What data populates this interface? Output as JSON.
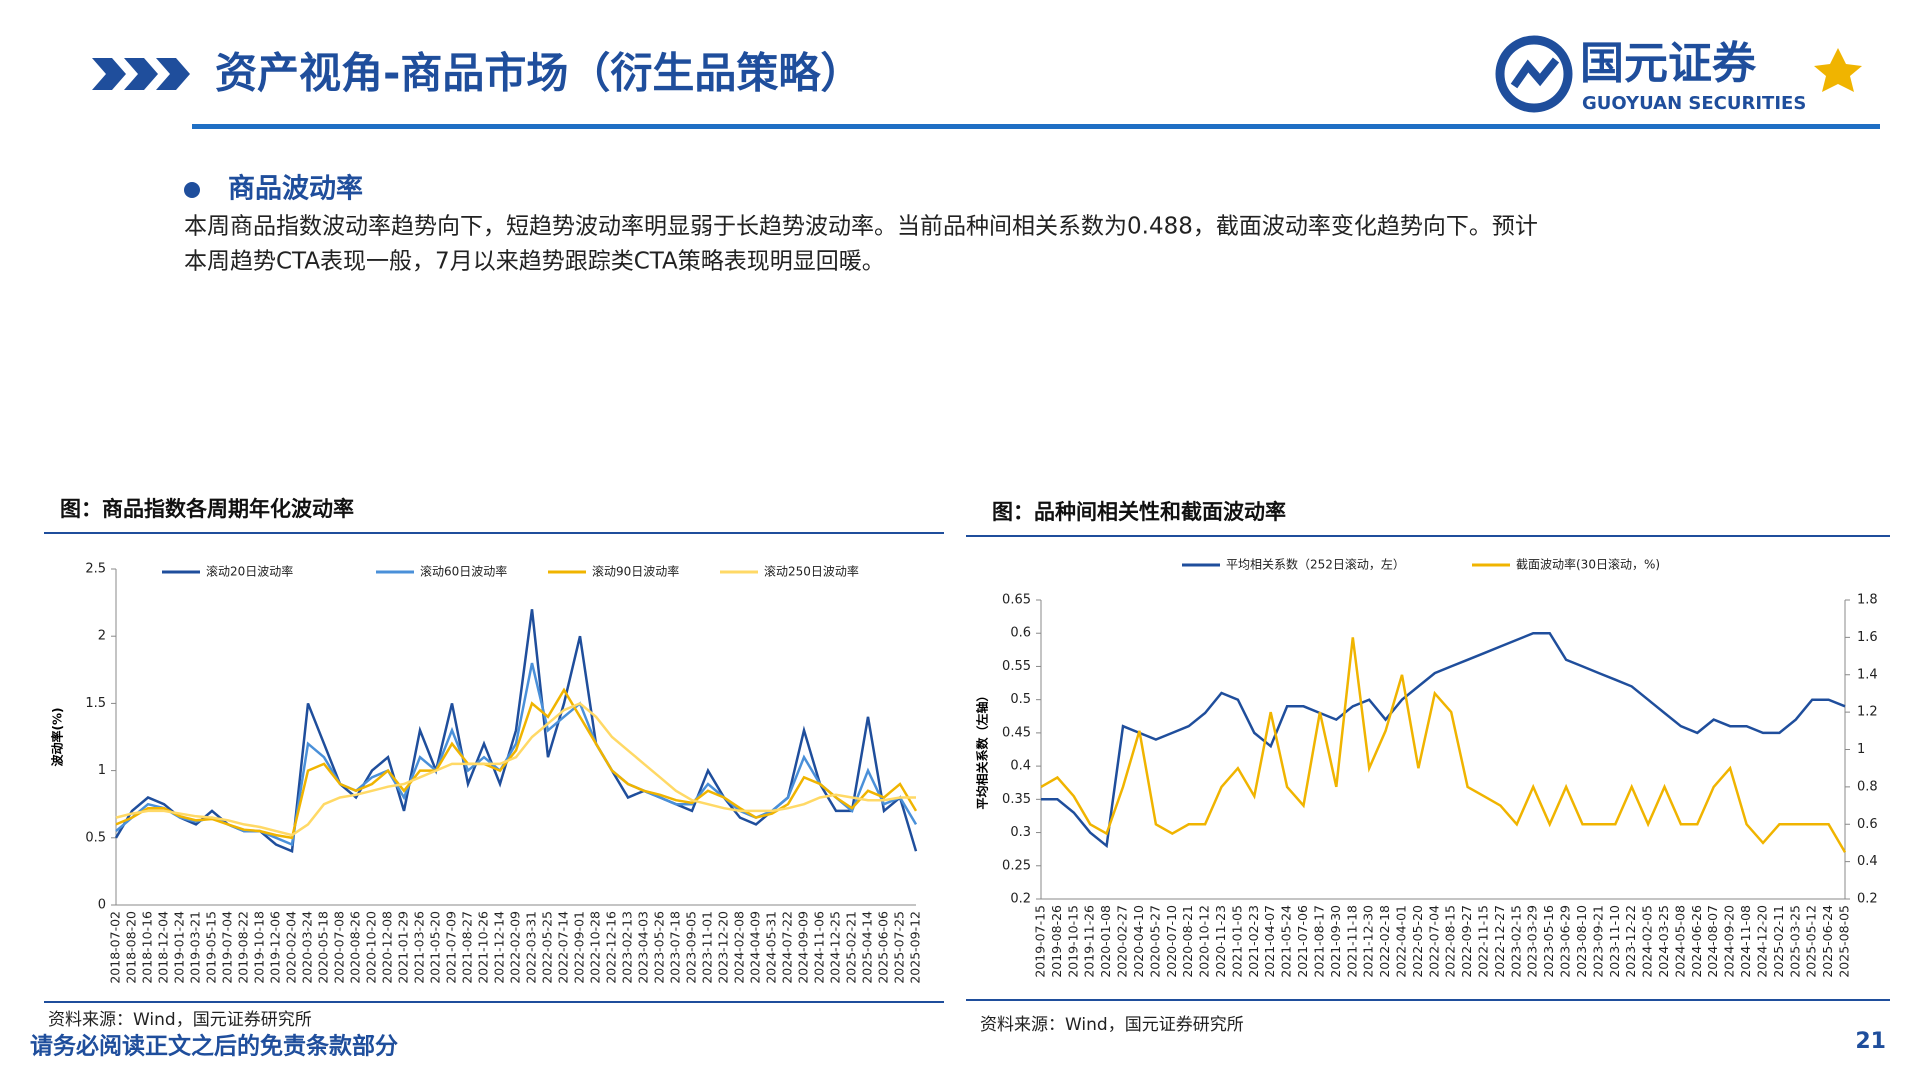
{
  "header": {
    "title": "资产视角-商品市场（衍生品策略）",
    "logo_name": "国元证券",
    "logo_english": "GUOYUAN SECURITIES"
  },
  "section": {
    "heading": "商品波动率",
    "lines": [
      "本周商品指数波动率趋势向下，短趋势波动率明显弱于长趋势波动率。当前品种间相关系数为0.488，截面波动率变化趋势向下。预计",
      "本周趋势CTA表现一般，7月以来趋势跟踪类CTA策略表现明显回暖。"
    ]
  },
  "footer": {
    "disclaimer": "请务必阅读正文之后的免责条款部分",
    "page": "21"
  },
  "chart_data": [
    {
      "type": "line",
      "title": "图：商品指数各周期年化波动率",
      "source": "资料来源：Wind，国元证券研究所",
      "y_label": "波动率(%)",
      "x": [
        "2018-07-02",
        "2018-08-20",
        "2018-10-16",
        "2018-12-04",
        "2019-01-24",
        "2019-03-21",
        "2019-05-15",
        "2019-07-04",
        "2019-08-22",
        "2019-10-18",
        "2019-12-06",
        "2020-02-04",
        "2020-03-24",
        "2020-05-18",
        "2020-07-08",
        "2020-08-26",
        "2020-10-20",
        "2020-12-08",
        "2021-01-29",
        "2021-03-26",
        "2021-05-20",
        "2021-07-09",
        "2021-08-27",
        "2021-10-26",
        "2021-12-14",
        "2022-02-09",
        "2022-03-31",
        "2022-05-25",
        "2022-07-14",
        "2022-09-01",
        "2022-10-28",
        "2022-12-16",
        "2023-02-13",
        "2023-04-03",
        "2023-05-26",
        "2023-07-18",
        "2023-09-05",
        "2023-11-01",
        "2023-12-20",
        "2024-02-08",
        "2024-04-09",
        "2024-05-31",
        "2024-07-22",
        "2024-09-09",
        "2024-11-06",
        "2024-12-25",
        "2025-02-21",
        "2025-04-14",
        "2025-06-06",
        "2025-07-25",
        "2025-09-12"
      ],
      "ylim": [
        0,
        2.5
      ],
      "yticks": [
        0,
        0.5,
        1,
        1.5,
        2,
        2.5
      ],
      "series": [
        {
          "name": "滚动20日波动率",
          "color": "#1f4e9c",
          "values": [
            0.5,
            0.7,
            0.8,
            0.75,
            0.65,
            0.6,
            0.7,
            0.6,
            0.55,
            0.55,
            0.45,
            0.4,
            1.5,
            1.2,
            0.9,
            0.8,
            1.0,
            1.1,
            0.7,
            1.3,
            1.0,
            1.5,
            0.9,
            1.2,
            0.9,
            1.3,
            2.2,
            1.1,
            1.5,
            2.0,
            1.2,
            1.0,
            0.8,
            0.85,
            0.8,
            0.75,
            0.7,
            1.0,
            0.8,
            0.65,
            0.6,
            0.7,
            0.8,
            1.3,
            0.9,
            0.7,
            0.7,
            1.4,
            0.7,
            0.8,
            0.4
          ]
        },
        {
          "name": "滚动60日波动率",
          "color": "#4a90d9",
          "values": [
            0.55,
            0.65,
            0.75,
            0.72,
            0.65,
            0.62,
            0.65,
            0.6,
            0.55,
            0.55,
            0.5,
            0.45,
            1.2,
            1.1,
            0.9,
            0.85,
            0.95,
            1.0,
            0.8,
            1.1,
            1.0,
            1.3,
            1.0,
            1.1,
            1.0,
            1.2,
            1.8,
            1.3,
            1.4,
            1.5,
            1.2,
            1.0,
            0.9,
            0.85,
            0.8,
            0.75,
            0.75,
            0.9,
            0.8,
            0.7,
            0.65,
            0.7,
            0.8,
            1.1,
            0.9,
            0.8,
            0.7,
            1.0,
            0.75,
            0.8,
            0.6
          ]
        },
        {
          "name": "滚动90日波动率",
          "color": "#f0b400",
          "values": [
            0.6,
            0.65,
            0.72,
            0.72,
            0.66,
            0.63,
            0.64,
            0.6,
            0.56,
            0.55,
            0.52,
            0.5,
            1.0,
            1.05,
            0.9,
            0.85,
            0.9,
            1.0,
            0.85,
            1.0,
            1.0,
            1.2,
            1.05,
            1.05,
            1.0,
            1.15,
            1.5,
            1.4,
            1.6,
            1.4,
            1.2,
            1.0,
            0.9,
            0.85,
            0.82,
            0.78,
            0.76,
            0.85,
            0.8,
            0.72,
            0.65,
            0.68,
            0.75,
            0.95,
            0.9,
            0.8,
            0.72,
            0.85,
            0.8,
            0.9,
            0.7
          ]
        },
        {
          "name": "滚动250日波动率",
          "color": "#ffd966",
          "values": [
            0.65,
            0.68,
            0.7,
            0.7,
            0.68,
            0.66,
            0.65,
            0.63,
            0.6,
            0.58,
            0.55,
            0.52,
            0.6,
            0.75,
            0.8,
            0.82,
            0.85,
            0.88,
            0.9,
            0.95,
            1.0,
            1.05,
            1.05,
            1.05,
            1.05,
            1.1,
            1.25,
            1.35,
            1.45,
            1.5,
            1.4,
            1.25,
            1.15,
            1.05,
            0.95,
            0.85,
            0.78,
            0.75,
            0.72,
            0.7,
            0.7,
            0.7,
            0.72,
            0.75,
            0.8,
            0.82,
            0.8,
            0.78,
            0.78,
            0.8,
            0.8
          ]
        }
      ]
    },
    {
      "type": "line",
      "title": "图：品种间相关性和截面波动率",
      "source": "资料来源：Wind，国元证券研究所",
      "y_label": "平均相关系数（左轴）",
      "x": [
        "2019-07-15",
        "2019-08-26",
        "2019-10-15",
        "2019-11-26",
        "2020-01-08",
        "2020-02-27",
        "2020-04-10",
        "2020-05-27",
        "2020-07-10",
        "2020-08-21",
        "2020-10-12",
        "2020-11-23",
        "2021-01-05",
        "2021-02-23",
        "2021-04-07",
        "2021-05-24",
        "2021-07-06",
        "2021-08-17",
        "2021-09-30",
        "2021-11-18",
        "2021-12-30",
        "2022-02-18",
        "2022-04-01",
        "2022-05-20",
        "2022-07-04",
        "2022-08-15",
        "2022-09-27",
        "2022-11-15",
        "2022-12-27",
        "2023-02-15",
        "2023-03-29",
        "2023-05-16",
        "2023-06-29",
        "2023-08-10",
        "2023-09-21",
        "2023-11-10",
        "2023-12-22",
        "2024-02-05",
        "2024-03-25",
        "2024-05-08",
        "2024-06-26",
        "2024-08-07",
        "2024-09-20",
        "2024-11-08",
        "2024-12-20",
        "2025-02-11",
        "2025-03-25",
        "2025-05-12",
        "2025-06-24",
        "2025-08-05"
      ],
      "ylim": [
        0.2,
        0.65
      ],
      "yticks": [
        0.2,
        0.25,
        0.3,
        0.35,
        0.4,
        0.45,
        0.5,
        0.55,
        0.6,
        0.65
      ],
      "y2lim": [
        0.2,
        1.8
      ],
      "y2ticks": [
        0.2,
        0.4,
        0.6,
        0.8,
        1,
        1.2,
        1.4,
        1.6,
        1.8
      ],
      "series": [
        {
          "name": "平均相关系数（252日滚动，左）",
          "color": "#1f4e9c",
          "values": [
            0.35,
            0.35,
            0.33,
            0.3,
            0.28,
            0.46,
            0.45,
            0.44,
            0.45,
            0.46,
            0.48,
            0.51,
            0.5,
            0.45,
            0.43,
            0.49,
            0.49,
            0.48,
            0.47,
            0.49,
            0.5,
            0.47,
            0.5,
            0.52,
            0.54,
            0.55,
            0.56,
            0.57,
            0.58,
            0.59,
            0.6,
            0.6,
            0.56,
            0.55,
            0.54,
            0.53,
            0.52,
            0.5,
            0.48,
            0.46,
            0.45,
            0.47,
            0.46,
            0.46,
            0.45,
            0.45,
            0.47,
            0.5,
            0.5,
            0.49
          ]
        },
        {
          "name": "截面波动率(30日滚动，%)",
          "color": "#f0b400",
          "axis": "y2",
          "values": [
            0.8,
            0.85,
            0.75,
            0.6,
            0.55,
            0.8,
            1.1,
            0.6,
            0.55,
            0.6,
            0.6,
            0.8,
            0.9,
            0.75,
            1.2,
            0.8,
            0.7,
            1.2,
            0.8,
            1.6,
            0.9,
            1.1,
            1.4,
            0.9,
            1.3,
            1.2,
            0.8,
            0.75,
            0.7,
            0.6,
            0.8,
            0.6,
            0.8,
            0.6,
            0.6,
            0.6,
            0.8,
            0.6,
            0.8,
            0.6,
            0.6,
            0.8,
            0.9,
            0.6,
            0.5,
            0.6,
            0.6,
            0.6,
            0.6,
            0.45
          ]
        }
      ]
    }
  ]
}
